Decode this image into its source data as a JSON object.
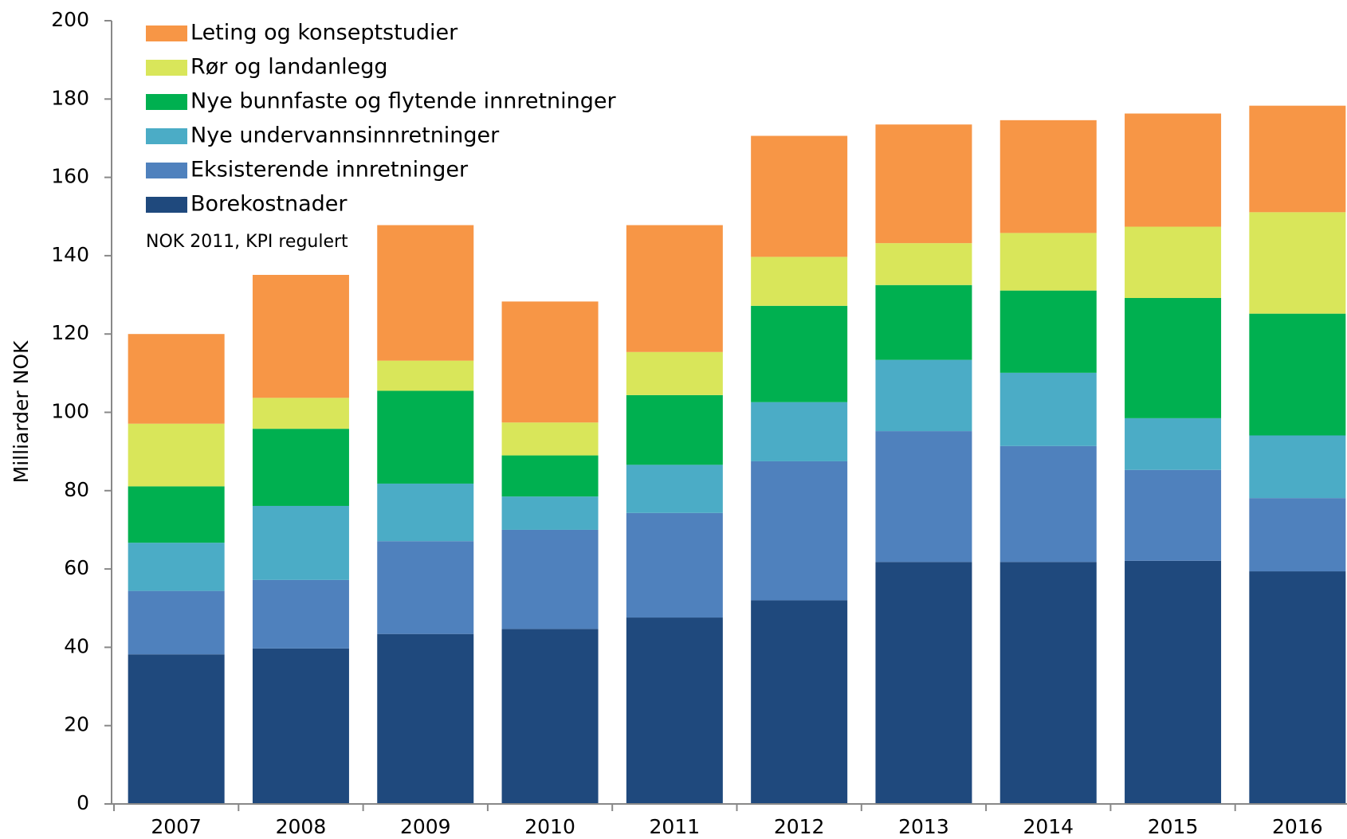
{
  "chart_data": {
    "type": "stacked_bar",
    "y_label": "Milliarder NOK",
    "note": "NOK 2011, KPI regulert",
    "categories": [
      "2007",
      "2008",
      "2009",
      "2010",
      "2011",
      "2012",
      "2013",
      "2014",
      "2015",
      "2016"
    ],
    "series": [
      {
        "name": "Borekostnader",
        "color": "#1f497d",
        "values": [
          38.2,
          39.7,
          43.4,
          44.7,
          47.6,
          52.0,
          61.8,
          61.8,
          62.1,
          59.4
        ]
      },
      {
        "name": "Eksisterende innretninger",
        "color": "#4f81bd",
        "values": [
          16.2,
          17.5,
          23.7,
          25.3,
          26.7,
          35.5,
          33.4,
          29.6,
          23.2,
          18.7
        ]
      },
      {
        "name": "Nye undervannsinnretninger",
        "color": "#4bacc6",
        "values": [
          12.3,
          18.9,
          14.7,
          8.5,
          12.3,
          15.1,
          18.2,
          18.7,
          13.2,
          16.0
        ]
      },
      {
        "name": "Nye bunnfaste og flytende innretninger",
        "color": "#00b050",
        "values": [
          14.4,
          19.7,
          23.7,
          10.5,
          17.8,
          24.6,
          19.1,
          21.0,
          30.7,
          31.1
        ]
      },
      {
        "name": "Rør og landanlegg",
        "color": "#d9e65a",
        "values": [
          16.0,
          7.9,
          7.7,
          8.4,
          11.0,
          12.5,
          10.7,
          14.7,
          18.2,
          25.9
        ]
      },
      {
        "name": "Leting og konseptstudier",
        "color": "#f79646",
        "values": [
          22.9,
          31.4,
          34.6,
          30.9,
          32.4,
          30.9,
          30.3,
          28.8,
          28.9,
          27.2
        ]
      }
    ],
    "ylim": [
      0,
      200
    ],
    "yticks": [
      0,
      20,
      40,
      60,
      80,
      100,
      120,
      140,
      160,
      180,
      200
    ]
  }
}
